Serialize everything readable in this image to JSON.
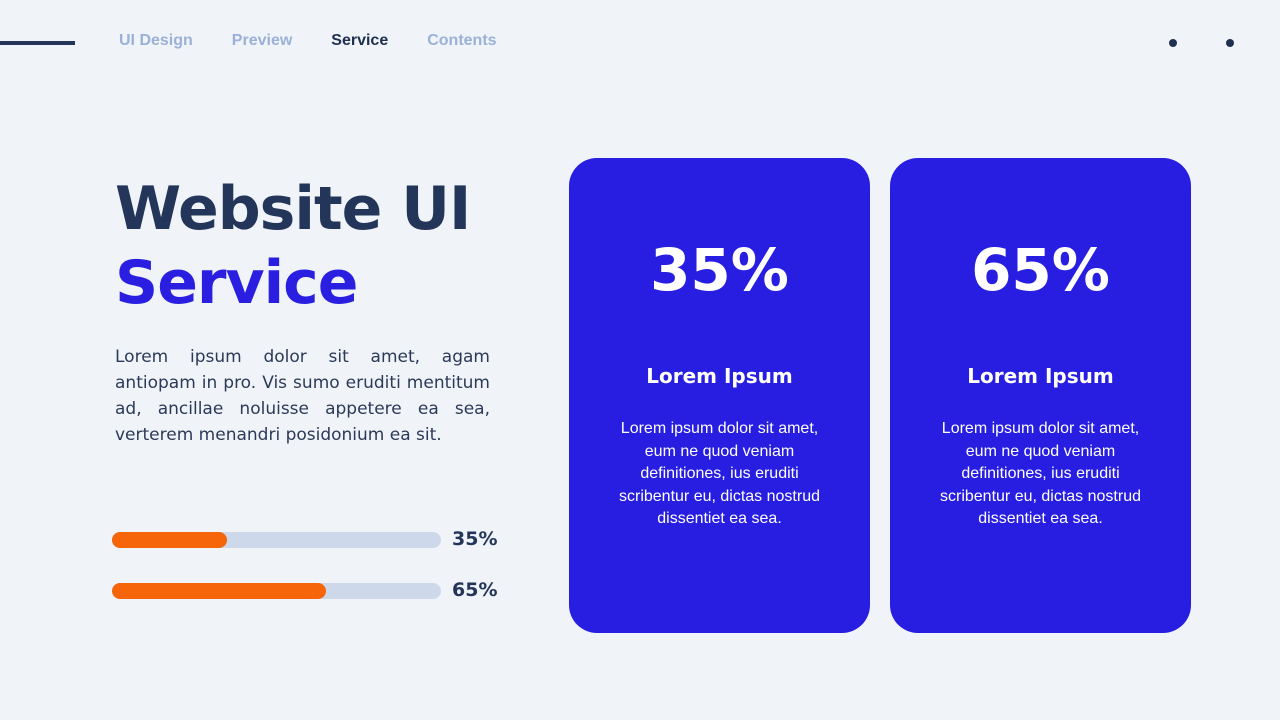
{
  "nav": {
    "items": [
      {
        "label": "UI Design",
        "active": false
      },
      {
        "label": "Preview",
        "active": false
      },
      {
        "label": "Service",
        "active": true
      },
      {
        "label": "Contents",
        "active": false
      }
    ]
  },
  "hero": {
    "title_line1": "Website UI",
    "title_line2": "Service",
    "description": "Lorem ipsum dolor sit amet, agam antiopam in pro. Vis sumo eruditi mentitum ad, ancillae noluisse appetere ea sea, verterem menandri posidonium ea sit."
  },
  "progress": [
    {
      "value": 35,
      "label": "35%"
    },
    {
      "value": 65,
      "label": "65%"
    }
  ],
  "cards": [
    {
      "value": "35%",
      "heading": "Lorem Ipsum",
      "body": "Lorem ipsum dolor sit amet, eum ne quod veniam definitiones, ius eruditi scribentur eu, dictas nostrud dissentiet ea sea."
    },
    {
      "value": "65%",
      "heading": "Lorem Ipsum",
      "body": "Lorem ipsum dolor sit amet, eum ne quod veniam definitiones, ius eruditi scribentur eu, dictas nostrud dissentiet ea sea."
    }
  ],
  "colors": {
    "accent": "#271ee2",
    "progress": "#f7650a",
    "dark": "#23365a",
    "nav_inactive": "#9ab1d8"
  }
}
